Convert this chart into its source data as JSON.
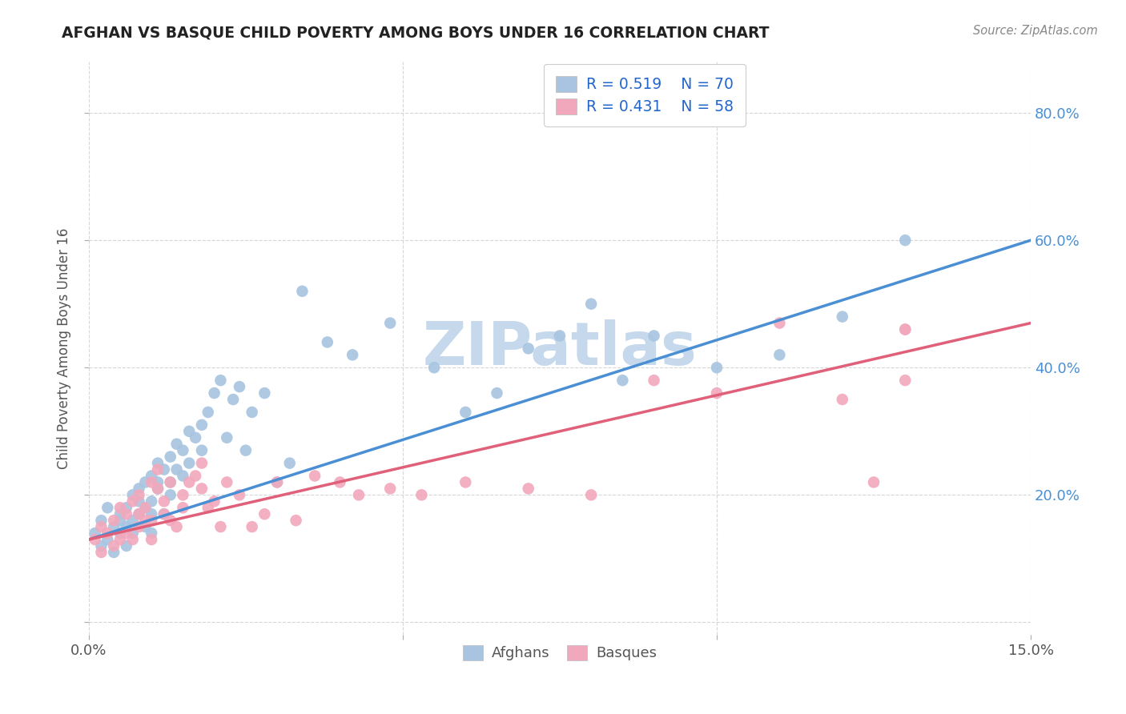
{
  "title": "AFGHAN VS BASQUE CHILD POVERTY AMONG BOYS UNDER 16 CORRELATION CHART",
  "source": "Source: ZipAtlas.com",
  "ylabel": "Child Poverty Among Boys Under 16",
  "xlim": [
    0.0,
    0.15
  ],
  "ylim": [
    -0.02,
    0.88
  ],
  "legend_r_afghan": "R = 0.519",
  "legend_n_afghan": "N = 70",
  "legend_r_basque": "R = 0.431",
  "legend_n_basque": "N = 58",
  "color_afghan": "#a8c4e0",
  "color_basque": "#f2a8bc",
  "color_line_afghan": "#4a8fd4",
  "color_line_basque": "#e0607a",
  "color_title": "#222222",
  "color_legend_text_blue": "#2266cc",
  "color_watermark": "#c5d8ec",
  "watermark_text": "ZIPatlas",
  "background_color": "#ffffff",
  "grid_color": "#cccccc",
  "line_afghan_x0": 0.0,
  "line_afghan_y0": 0.13,
  "line_afghan_x1": 0.15,
  "line_afghan_y1": 0.6,
  "line_basque_x0": 0.0,
  "line_basque_y0": 0.13,
  "line_basque_x1": 0.15,
  "line_basque_y1": 0.47,
  "afghan_x": [
    0.001,
    0.002,
    0.002,
    0.003,
    0.003,
    0.004,
    0.004,
    0.005,
    0.005,
    0.005,
    0.006,
    0.006,
    0.006,
    0.007,
    0.007,
    0.007,
    0.008,
    0.008,
    0.008,
    0.009,
    0.009,
    0.009,
    0.01,
    0.01,
    0.01,
    0.01,
    0.011,
    0.011,
    0.011,
    0.012,
    0.012,
    0.013,
    0.013,
    0.013,
    0.014,
    0.014,
    0.015,
    0.015,
    0.016,
    0.016,
    0.017,
    0.018,
    0.018,
    0.019,
    0.02,
    0.021,
    0.022,
    0.023,
    0.024,
    0.025,
    0.026,
    0.028,
    0.03,
    0.032,
    0.034,
    0.038,
    0.042,
    0.048,
    0.055,
    0.06,
    0.065,
    0.07,
    0.075,
    0.08,
    0.085,
    0.09,
    0.1,
    0.11,
    0.12,
    0.13
  ],
  "afghan_y": [
    0.14,
    0.16,
    0.12,
    0.18,
    0.13,
    0.15,
    0.11,
    0.17,
    0.14,
    0.16,
    0.15,
    0.12,
    0.18,
    0.14,
    0.2,
    0.16,
    0.17,
    0.19,
    0.21,
    0.15,
    0.22,
    0.18,
    0.19,
    0.17,
    0.23,
    0.14,
    0.21,
    0.25,
    0.22,
    0.17,
    0.24,
    0.2,
    0.26,
    0.22,
    0.28,
    0.24,
    0.23,
    0.27,
    0.3,
    0.25,
    0.29,
    0.31,
    0.27,
    0.33,
    0.36,
    0.38,
    0.29,
    0.35,
    0.37,
    0.27,
    0.33,
    0.36,
    0.22,
    0.25,
    0.52,
    0.44,
    0.42,
    0.47,
    0.4,
    0.33,
    0.36,
    0.43,
    0.45,
    0.5,
    0.38,
    0.45,
    0.4,
    0.42,
    0.48,
    0.6
  ],
  "basque_x": [
    0.001,
    0.002,
    0.002,
    0.003,
    0.004,
    0.004,
    0.005,
    0.005,
    0.006,
    0.006,
    0.007,
    0.007,
    0.008,
    0.008,
    0.008,
    0.009,
    0.009,
    0.01,
    0.01,
    0.01,
    0.011,
    0.011,
    0.012,
    0.012,
    0.013,
    0.013,
    0.014,
    0.015,
    0.015,
    0.016,
    0.017,
    0.018,
    0.018,
    0.019,
    0.02,
    0.021,
    0.022,
    0.024,
    0.026,
    0.028,
    0.03,
    0.033,
    0.036,
    0.04,
    0.043,
    0.048,
    0.053,
    0.06,
    0.07,
    0.08,
    0.09,
    0.1,
    0.11,
    0.12,
    0.125,
    0.13,
    0.13,
    0.13
  ],
  "basque_y": [
    0.13,
    0.15,
    0.11,
    0.14,
    0.16,
    0.12,
    0.13,
    0.18,
    0.14,
    0.17,
    0.13,
    0.19,
    0.15,
    0.2,
    0.17,
    0.16,
    0.18,
    0.22,
    0.16,
    0.13,
    0.24,
    0.21,
    0.17,
    0.19,
    0.22,
    0.16,
    0.15,
    0.18,
    0.2,
    0.22,
    0.23,
    0.25,
    0.21,
    0.18,
    0.19,
    0.15,
    0.22,
    0.2,
    0.15,
    0.17,
    0.22,
    0.16,
    0.23,
    0.22,
    0.2,
    0.21,
    0.2,
    0.22,
    0.21,
    0.2,
    0.38,
    0.36,
    0.47,
    0.35,
    0.22,
    0.46,
    0.38,
    0.46
  ]
}
